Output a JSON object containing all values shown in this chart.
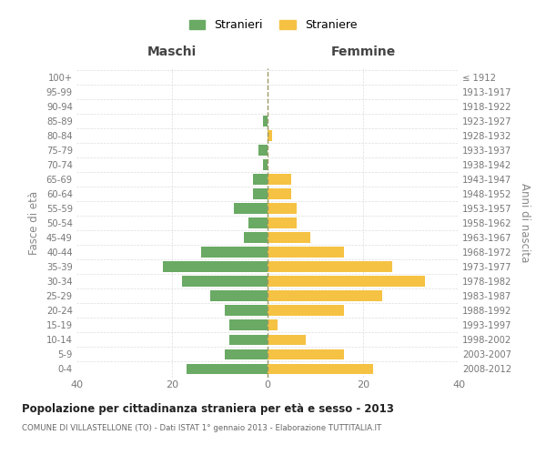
{
  "age_groups": [
    "0-4",
    "5-9",
    "10-14",
    "15-19",
    "20-24",
    "25-29",
    "30-34",
    "35-39",
    "40-44",
    "45-49",
    "50-54",
    "55-59",
    "60-64",
    "65-69",
    "70-74",
    "75-79",
    "80-84",
    "85-89",
    "90-94",
    "95-99",
    "100+"
  ],
  "birth_years": [
    "2008-2012",
    "2003-2007",
    "1998-2002",
    "1993-1997",
    "1988-1992",
    "1983-1987",
    "1978-1982",
    "1973-1977",
    "1968-1972",
    "1963-1967",
    "1958-1962",
    "1953-1957",
    "1948-1952",
    "1943-1947",
    "1938-1942",
    "1933-1937",
    "1928-1932",
    "1923-1927",
    "1918-1922",
    "1913-1917",
    "≤ 1912"
  ],
  "males": [
    17,
    9,
    8,
    8,
    9,
    12,
    18,
    22,
    14,
    5,
    4,
    7,
    3,
    3,
    1,
    2,
    0,
    1,
    0,
    0,
    0
  ],
  "females": [
    22,
    16,
    8,
    2,
    16,
    24,
    33,
    26,
    16,
    9,
    6,
    6,
    5,
    5,
    0,
    0,
    1,
    0,
    0,
    0,
    0
  ],
  "male_color": "#6aaa64",
  "female_color": "#f5c243",
  "background_color": "#ffffff",
  "grid_color": "#cccccc",
  "title": "Popolazione per cittadinanza straniera per età e sesso - 2013",
  "subtitle": "COMUNE DI VILLASTELLONE (TO) - Dati ISTAT 1° gennaio 2013 - Elaborazione TUTTITALIA.IT",
  "xlabel_left": "Maschi",
  "xlabel_right": "Femmine",
  "ylabel_left": "Fasce di età",
  "ylabel_right": "Anni di nascita",
  "xlim": 40,
  "legend_stranieri": "Stranieri",
  "legend_straniere": "Straniere",
  "label_color": "#777777",
  "axis_label_color": "#888888",
  "title_color": "#222222",
  "subtitle_color": "#666666",
  "zero_line_color": "#999966",
  "hgrid_color": "#dddddd"
}
